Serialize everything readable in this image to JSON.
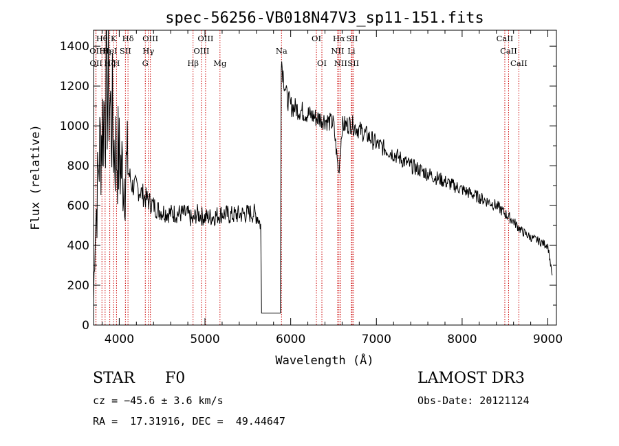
{
  "chart_data": {
    "type": "line",
    "title": "spec-56256-VB018N47V3_sp11-151.fits",
    "xlabel": "Wavelength (Å)",
    "ylabel": "Flux (relative)",
    "xlim": [
      3700,
      9100
    ],
    "ylim": [
      0,
      1480
    ],
    "xticks": [
      4000,
      5000,
      6000,
      7000,
      8000,
      9000
    ],
    "yticks": [
      0,
      200,
      400,
      600,
      800,
      1000,
      1200,
      1400
    ],
    "gap": [
      5660,
      5880
    ],
    "series": [
      {
        "name": "flux",
        "x": [
          3700,
          3720,
          3740,
          3760,
          3780,
          3800,
          3820,
          3840,
          3860,
          3880,
          3900,
          3920,
          3940,
          3960,
          3980,
          4000,
          4050,
          4100,
          4150,
          4200,
          4250,
          4300,
          4350,
          4400,
          4450,
          4500,
          4600,
          4700,
          4800,
          4860,
          4900,
          5000,
          5100,
          5200,
          5300,
          5400,
          5500,
          5580,
          5620,
          5650,
          5660,
          5880,
          5890,
          5900,
          5950,
          6000,
          6100,
          6200,
          6300,
          6400,
          6500,
          6560,
          6600,
          6700,
          6800,
          6900,
          7000,
          7200,
          7400,
          7600,
          7800,
          7900,
          8000,
          8200,
          8400,
          8500,
          8600,
          8700,
          8800,
          8900,
          9000,
          9050
        ],
        "values": [
          130,
          500,
          620,
          820,
          900,
          980,
          1080,
          1150,
          1200,
          1180,
          1050,
          1020,
          900,
          880,
          860,
          820,
          760,
          780,
          700,
          690,
          670,
          640,
          620,
          600,
          580,
          570,
          560,
          560,
          555,
          520,
          560,
          540,
          545,
          560,
          550,
          555,
          560,
          560,
          540,
          500,
          60,
          60,
          1350,
          1300,
          1150,
          1100,
          1080,
          1060,
          1040,
          1030,
          1010,
          760,
          1000,
          1010,
          980,
          950,
          910,
          860,
          800,
          760,
          720,
          700,
          680,
          640,
          600,
          560,
          520,
          470,
          440,
          420,
          400,
          250
        ]
      }
    ],
    "lines": [
      {
        "name": "Htheta",
        "label": "Hθ",
        "wl": 3798,
        "row": 0
      },
      {
        "name": "K",
        "label": "K",
        "wl": 3934,
        "row": 0
      },
      {
        "name": "Hdelta",
        "label": "Hδ",
        "wl": 4102,
        "row": 0
      },
      {
        "name": "OIII-a",
        "label": "OIII",
        "wl": 4363,
        "row": 0
      },
      {
        "name": "OIII-b",
        "label": "OIII",
        "wl": 5007,
        "row": 0
      },
      {
        "name": "OI-a",
        "label": "OI",
        "wl": 6300,
        "row": 0
      },
      {
        "name": "Halpha",
        "label": "Hα",
        "wl": 6563,
        "row": 0
      },
      {
        "name": "SII-a",
        "label": "SII",
        "wl": 6717,
        "row": 0
      },
      {
        "name": "CaII-a",
        "label": "CaII",
        "wl": 8498,
        "row": 0
      },
      {
        "name": "OII-a",
        "label": "OII",
        "wl": 3727,
        "row": 1
      },
      {
        "name": "Heta",
        "label": "Hη",
        "wl": 3835,
        "row": 1
      },
      {
        "name": "HeI",
        "label": "HeI",
        "wl": 3889,
        "row": 1
      },
      {
        "name": "SII-b",
        "label": "SII",
        "wl": 4072,
        "row": 1
      },
      {
        "name": "Hgamma",
        "label": "Hγ",
        "wl": 4340,
        "row": 1
      },
      {
        "name": "OIII-c",
        "label": "OIII",
        "wl": 4959,
        "row": 1
      },
      {
        "name": "Na",
        "label": "Na",
        "wl": 5893,
        "row": 1
      },
      {
        "name": "NII-a",
        "label": "NII",
        "wl": 6548,
        "row": 1
      },
      {
        "name": "Li",
        "label": "Li",
        "wl": 6708,
        "row": 1
      },
      {
        "name": "CaII-b",
        "label": "CaII",
        "wl": 8542,
        "row": 1
      },
      {
        "name": "OII-b",
        "label": "OII",
        "wl": 3729,
        "row": 2
      },
      {
        "name": "Hzeta",
        "label": "Hζ",
        "wl": 3889,
        "row": 2
      },
      {
        "name": "H",
        "label": "H",
        "wl": 3968,
        "row": 2
      },
      {
        "name": "G",
        "label": "G",
        "wl": 4304,
        "row": 2
      },
      {
        "name": "Hbeta",
        "label": "Hβ",
        "wl": 4861,
        "row": 2
      },
      {
        "name": "Mg",
        "label": "Mg",
        "wl": 5175,
        "row": 2
      },
      {
        "name": "OI-b",
        "label": "OI",
        "wl": 6364,
        "row": 2
      },
      {
        "name": "NII-b",
        "label": "NII",
        "wl": 6583,
        "row": 2
      },
      {
        "name": "SII-c",
        "label": "SII",
        "wl": 6731,
        "row": 2
      },
      {
        "name": "CaII-c",
        "label": "CaII",
        "wl": 8662,
        "row": 2
      }
    ]
  },
  "info": {
    "object_class": "STAR",
    "subclass": "F0",
    "survey": "LAMOST DR3",
    "redshift": "cz = −45.6 ± 3.6 km/s",
    "obs_date": "Obs-Date: 20121124",
    "coords": "RA =  17.31916, DEC =  49.44647"
  },
  "colors": {
    "spectrum": "#000000",
    "line_markers": "#cc0000",
    "axes": "#000000",
    "background": "#ffffff"
  }
}
